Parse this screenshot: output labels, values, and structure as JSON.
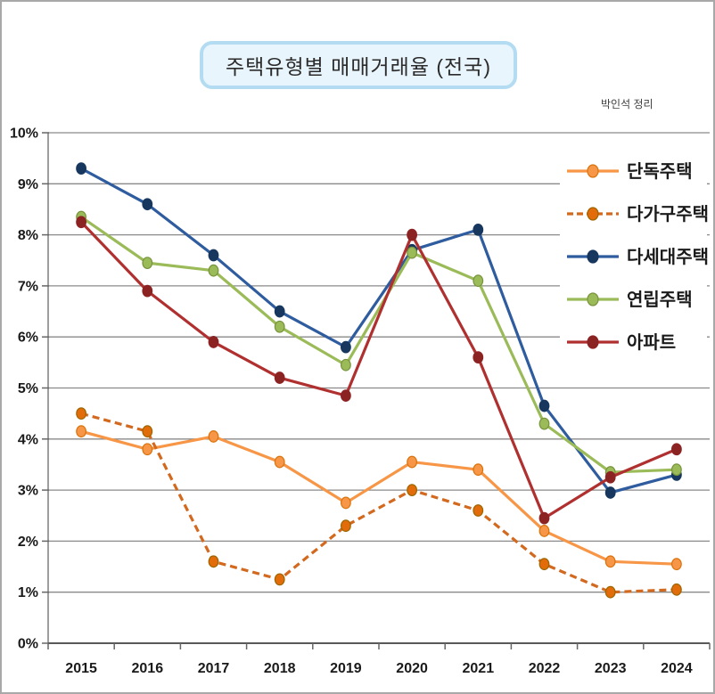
{
  "credit": "박인석 정리",
  "chart_data": {
    "type": "line",
    "title": "주택유형별 매매거래율 (전국)",
    "xlabel": "",
    "ylabel": "",
    "unit": "%",
    "ylim": [
      0,
      10
    ],
    "ytick_step": 1,
    "ytick_suffix": "%",
    "grid": true,
    "legend_position": "top-right-inside",
    "categories": [
      "2015",
      "2016",
      "2017",
      "2018",
      "2019",
      "2020",
      "2021",
      "2022",
      "2023",
      "2024"
    ],
    "colors": {
      "gridline": "#8a8a8a",
      "axis": "#595959",
      "tick_label": "#1a1a1a",
      "legend_text": "#1a1a1a",
      "title_box_fill": "#e9f5fc",
      "title_box_border": "#b3dcf2"
    },
    "series": [
      {
        "key": "detached-house",
        "name": "단독주택",
        "style": "solid",
        "color": "#F79646",
        "marker_color": "#F79646",
        "marker_stroke": "#D9730D",
        "values": [
          4.15,
          3.8,
          4.05,
          3.55,
          2.75,
          3.55,
          3.4,
          2.2,
          1.6,
          1.55
        ]
      },
      {
        "key": "multi-household-house",
        "name": "다가구주택",
        "style": "dashed",
        "color": "#D2691E",
        "marker_color": "#E36C0A",
        "marker_stroke": "#9C6500",
        "values": [
          4.5,
          4.15,
          1.6,
          1.25,
          2.3,
          3.0,
          2.6,
          1.55,
          1.0,
          1.05
        ]
      },
      {
        "key": "multi-unit-house",
        "name": "다세대주택",
        "style": "solid",
        "color": "#2E5C9E",
        "marker_color": "#17375E",
        "marker_stroke": "#17375E",
        "values": [
          9.3,
          8.6,
          7.6,
          6.5,
          5.8,
          7.7,
          8.1,
          4.65,
          2.95,
          3.3
        ]
      },
      {
        "key": "row-house",
        "name": "연립주택",
        "style": "solid",
        "color": "#9BBB59",
        "marker_color": "#9BBB59",
        "marker_stroke": "#77933C",
        "values": [
          8.35,
          7.45,
          7.3,
          6.2,
          5.45,
          7.65,
          7.1,
          4.3,
          3.35,
          3.4
        ]
      },
      {
        "key": "apartment",
        "name": "아파트",
        "style": "solid",
        "color": "#B03030",
        "marker_color": "#8C2323",
        "marker_stroke": "#8C2323",
        "values": [
          8.25,
          6.9,
          5.9,
          5.2,
          4.85,
          8.0,
          5.6,
          2.45,
          3.25,
          3.8
        ]
      }
    ]
  }
}
